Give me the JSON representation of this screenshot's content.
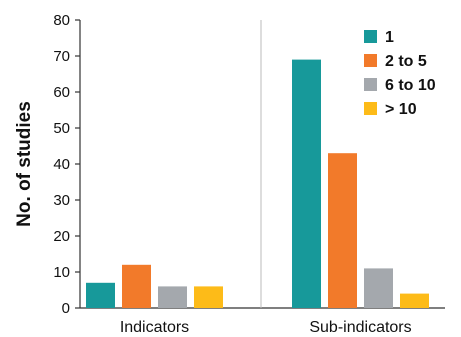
{
  "chart_data": {
    "type": "bar",
    "ylabel": "No. of studies",
    "xlabel": "",
    "categories": [
      "Indicators",
      "Sub-indicators"
    ],
    "ylim": [
      0,
      80
    ],
    "yticks": [
      0,
      10,
      20,
      30,
      40,
      50,
      60,
      70,
      80
    ],
    "grid": false,
    "legend_position": "top-right",
    "series": [
      {
        "name": "1",
        "color": "#17999a",
        "values": [
          7,
          69
        ]
      },
      {
        "name": "2 to 5",
        "color": "#f27a2a",
        "values": [
          12,
          43
        ]
      },
      {
        "name": "6 to 10",
        "color": "#a4a8ad",
        "values": [
          6,
          11
        ]
      },
      {
        "name": "> 10",
        "color": "#fdbb18",
        "values": [
          6,
          4
        ]
      }
    ]
  }
}
